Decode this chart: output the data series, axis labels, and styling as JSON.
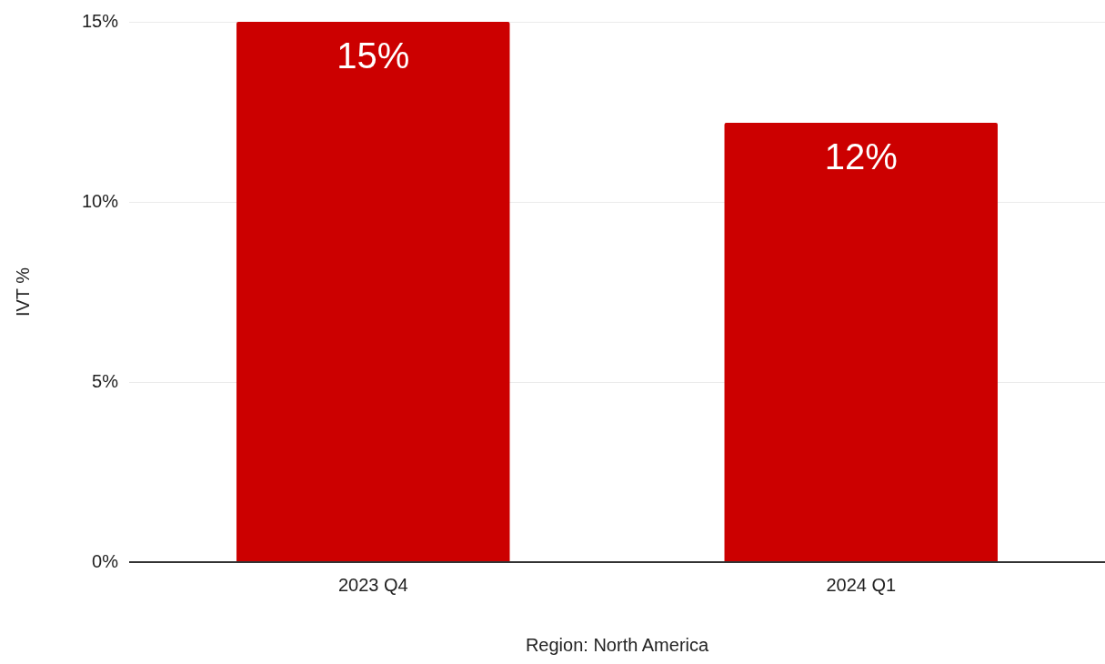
{
  "chart_data": {
    "type": "bar",
    "xlabel": "Region: North America",
    "ylabel": "IVT %",
    "categories": [
      "2023 Q4",
      "2024 Q1"
    ],
    "values": [
      15,
      12.2
    ],
    "value_labels": [
      "15%",
      "12%"
    ],
    "color": "#cc0000",
    "ylim": [
      0,
      15
    ],
    "yticks": [
      {
        "value": 0,
        "label": "0%"
      },
      {
        "value": 5,
        "label": "5%"
      },
      {
        "value": 10,
        "label": "10%"
      },
      {
        "value": 15,
        "label": "15%"
      }
    ],
    "grid": "y",
    "legend": false
  }
}
